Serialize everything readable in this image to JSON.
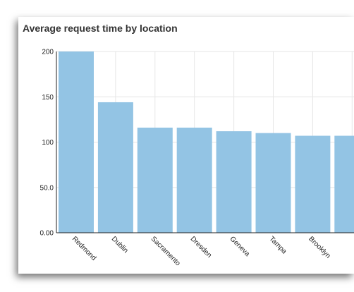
{
  "card": {
    "title": "Average request time by location"
  },
  "chart_data": {
    "type": "bar",
    "title": "Average request time by location",
    "xlabel": "",
    "ylabel": "",
    "categories": [
      "Redmond",
      "Dublin",
      "Sacramento",
      "Dresden",
      "Geneva",
      "Tampa",
      "Brooklyn",
      ""
    ],
    "values": [
      200,
      144,
      116,
      116,
      112,
      110,
      107,
      107
    ],
    "ylim": [
      0,
      200
    ],
    "yticks": [
      "0.00",
      "50.0",
      "100",
      "150",
      "200"
    ],
    "grid": true,
    "colors": {
      "bar": "#93c4e4",
      "grid": "#e6e6e6",
      "axis": "#222222"
    }
  }
}
